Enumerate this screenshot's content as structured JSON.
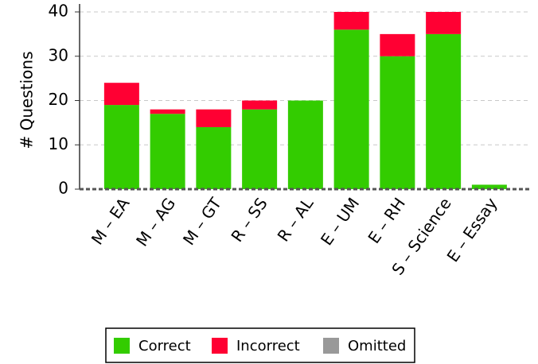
{
  "chart_data": {
    "type": "bar",
    "stacked": true,
    "y_label": "# Questions",
    "categories": [
      "M – EA",
      "M – AG",
      "M – GT",
      "R – SS",
      "R – AL",
      "E – UM",
      "E – RH",
      "S – Science",
      "E – Essay"
    ],
    "series": [
      {
        "name": "Correct",
        "color": "#33cc00",
        "values": [
          19,
          17,
          14,
          18,
          20,
          36,
          30,
          35,
          1
        ]
      },
      {
        "name": "Incorrect",
        "color": "#ff0033",
        "values": [
          5,
          1,
          4,
          2,
          0,
          4,
          5,
          5,
          0
        ]
      },
      {
        "name": "Omitted",
        "color": "#999999",
        "values": [
          0,
          0,
          0,
          0,
          0,
          0,
          0,
          0,
          0
        ]
      }
    ],
    "ylim": [
      0,
      40
    ],
    "yticks": [
      0,
      10,
      20,
      30,
      40
    ],
    "grid": true,
    "legend": "bottom"
  }
}
